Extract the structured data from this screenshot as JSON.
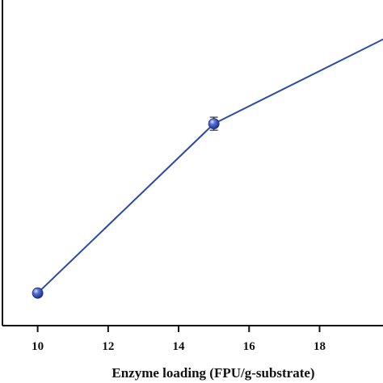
{
  "chart_data": {
    "type": "line",
    "title": "",
    "xlabel": "Enzyme loading (FPU/g-substrate)",
    "ylabel": "",
    "xlim": [
      9.0,
      19.8
    ],
    "ylim": [
      0,
      100
    ],
    "x_ticks": [
      10,
      12,
      14,
      16,
      18
    ],
    "x_tick_labels": [
      "10",
      "12",
      "14",
      "16",
      "18"
    ],
    "series": [
      {
        "x": [
          10,
          15,
          20
        ],
        "y": [
          10,
          62,
          89
        ],
        "error": [
          0,
          2,
          0
        ],
        "color": "#2b4aa6",
        "marker_color": "#2f47b8"
      }
    ],
    "grid": false,
    "legend": "none"
  }
}
